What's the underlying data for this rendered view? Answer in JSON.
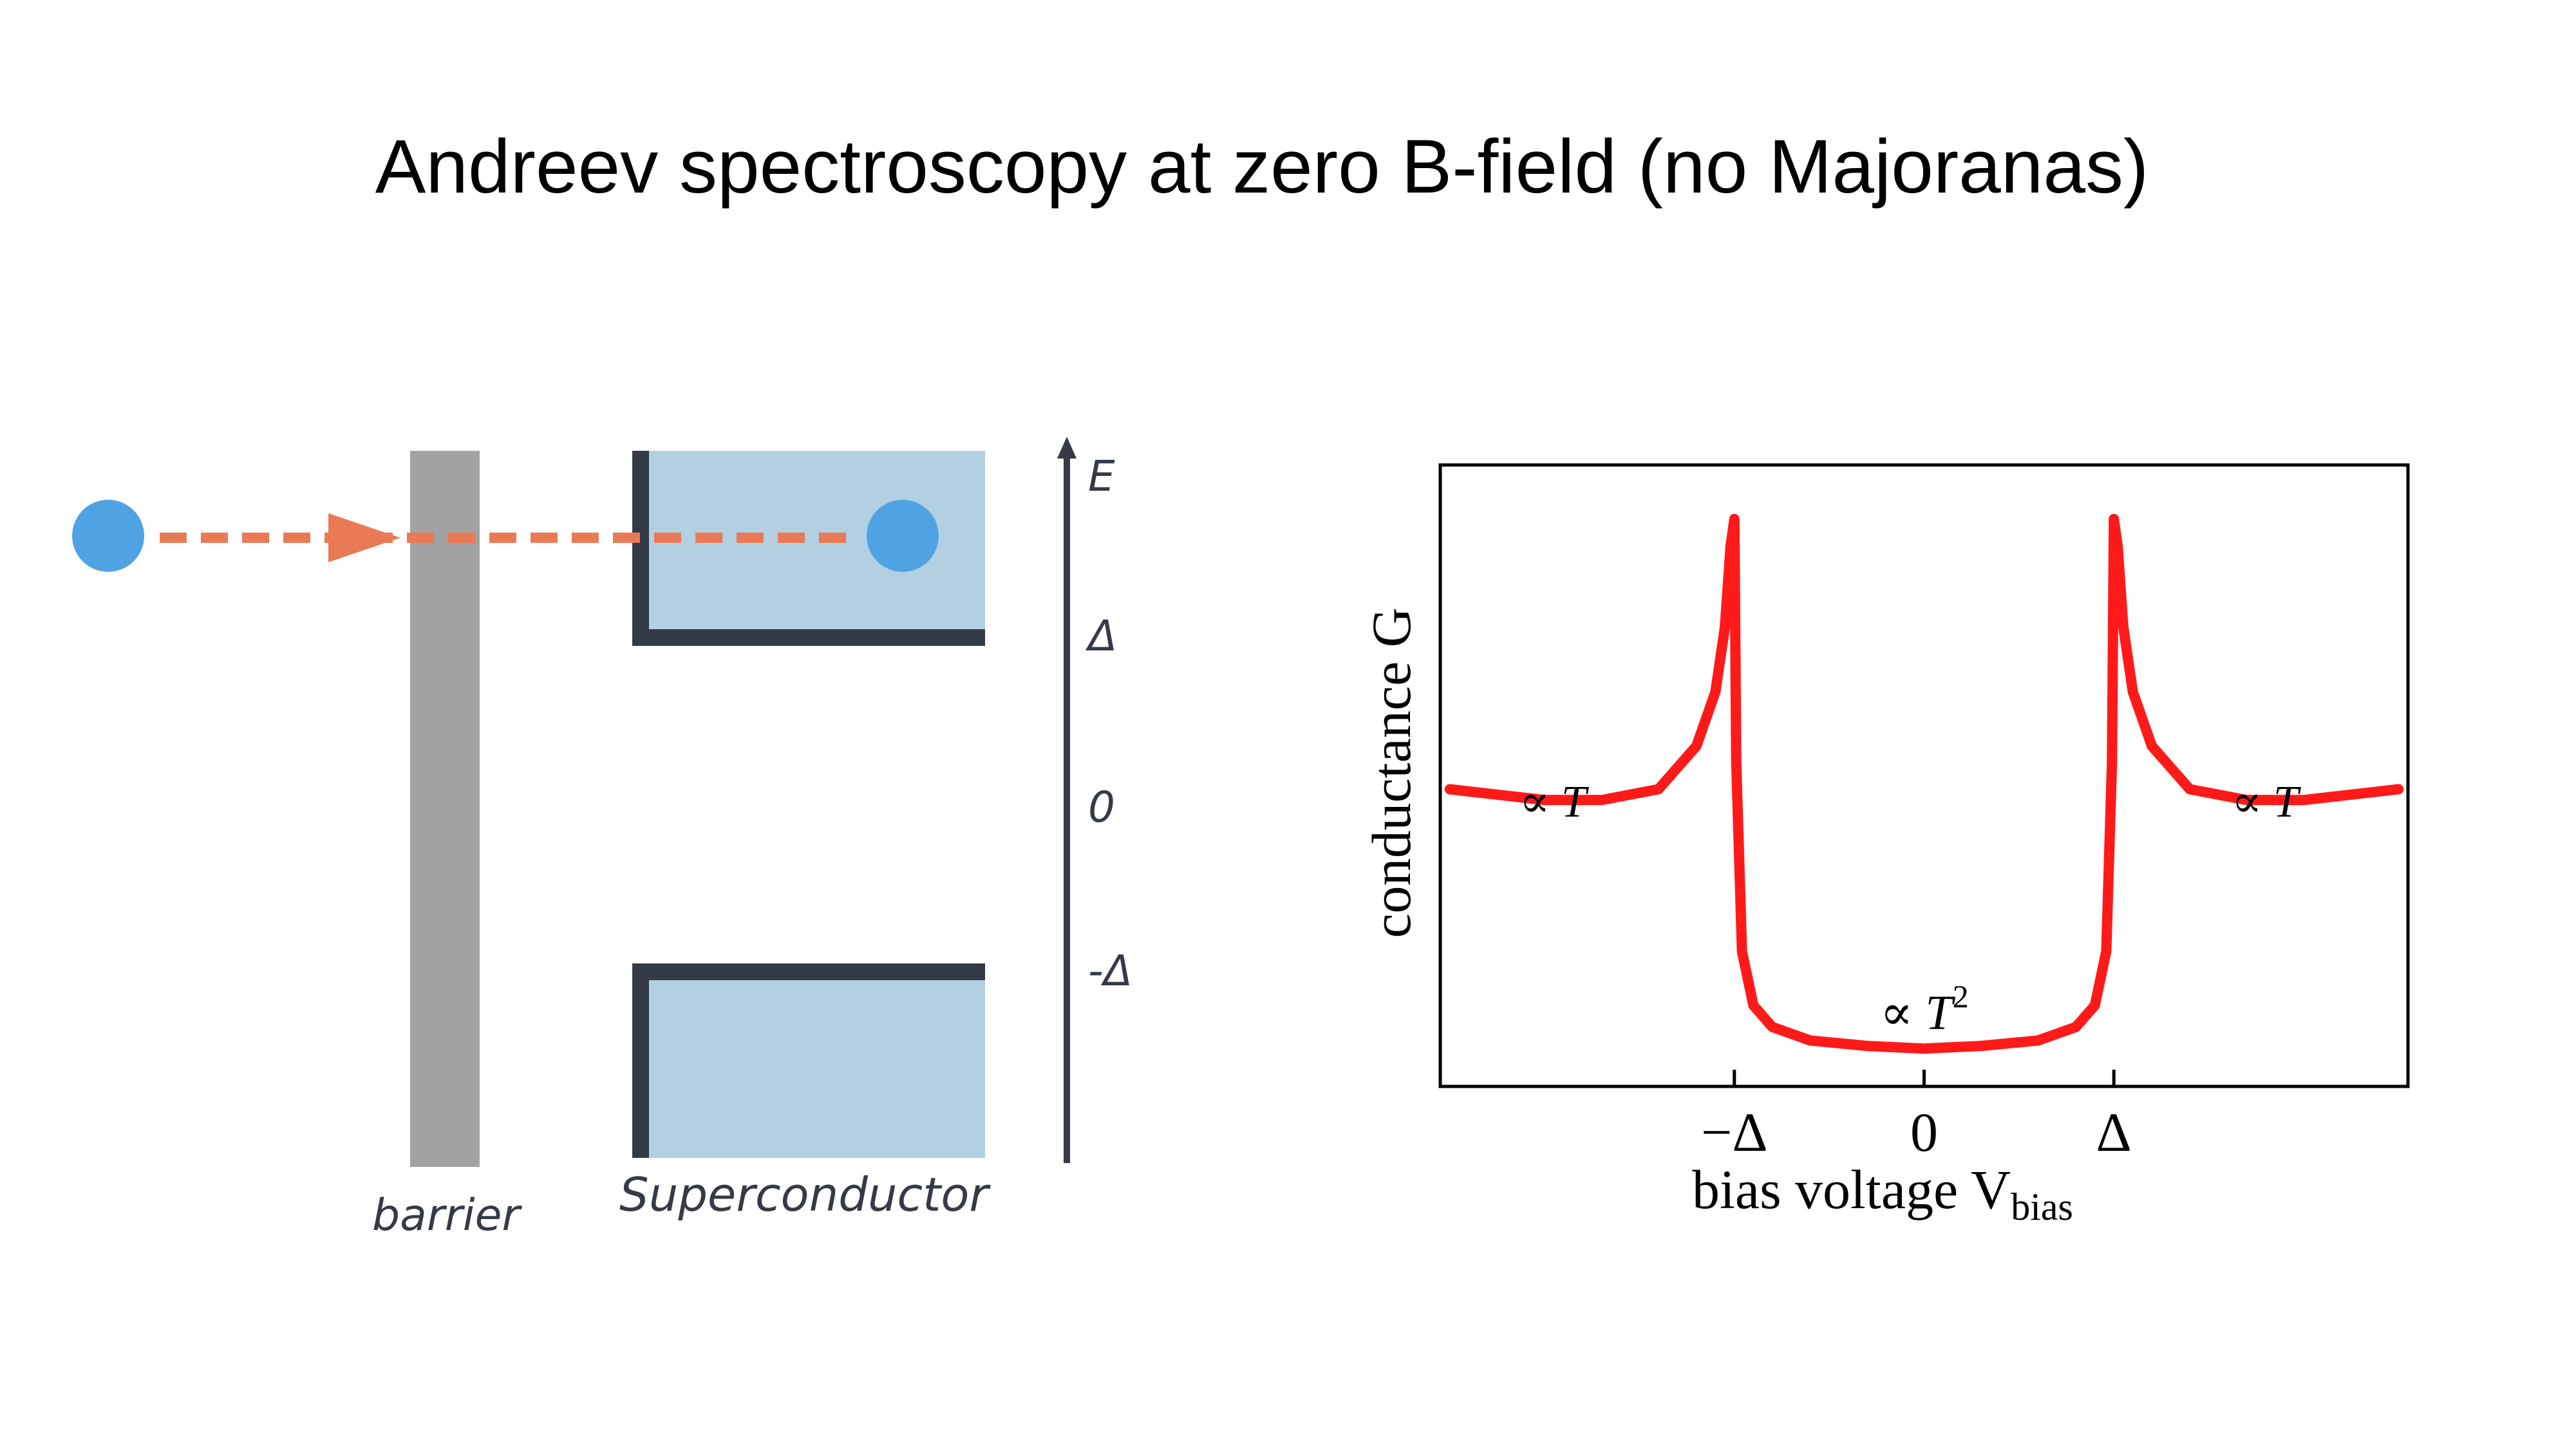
{
  "title": "Andreev spectroscopy at zero B-field (no Majoranas)",
  "diagram": {
    "barrier_label": "barrier",
    "superconductor_label": "Superconductor",
    "energy_axis": {
      "label": "E",
      "ticks": [
        "Δ",
        "0",
        "-Δ"
      ]
    },
    "colors": {
      "electron": "#4fa3e3",
      "trajectory": "#ea7a56",
      "barrier": "#a2a2a2",
      "superconductor_fill": "#b3cfe2",
      "superconductor_edge": "#343a46",
      "axis": "#343a46"
    }
  },
  "chart_data": {
    "type": "line",
    "xlabel": "bias voltage V",
    "xlabel_subscript": "bias",
    "ylabel": "conductance G",
    "x_ticks": [
      "−Δ",
      "0",
      "Δ"
    ],
    "annotations": [
      {
        "text": "∝ T",
        "region": "left, |V| > Δ"
      },
      {
        "text": "∝ T",
        "region": "right, |V| > Δ"
      },
      {
        "text": "∝ T",
        "superscript": "2",
        "region": "center, |V| < Δ"
      }
    ],
    "series": [
      {
        "color": "#ff1a1a",
        "x": [
          -2.5,
          -2.0,
          -1.7,
          -1.4,
          -1.2,
          -1.1,
          -1.05,
          -1.02,
          -1.0,
          -0.99,
          -0.96,
          -0.9,
          -0.8,
          -0.6,
          -0.3,
          0.0,
          0.3,
          0.6,
          0.8,
          0.9,
          0.96,
          0.99,
          1.0,
          1.02,
          1.05,
          1.1,
          1.2,
          1.4,
          1.7,
          2.0,
          2.5
        ],
        "y": [
          0.5,
          0.48,
          0.48,
          0.5,
          0.58,
          0.68,
          0.8,
          0.95,
          1.0,
          0.55,
          0.2,
          0.1,
          0.06,
          0.035,
          0.025,
          0.02,
          0.025,
          0.035,
          0.06,
          0.1,
          0.2,
          0.55,
          1.0,
          0.95,
          0.8,
          0.68,
          0.58,
          0.5,
          0.48,
          0.48,
          0.5
        ]
      }
    ],
    "xlim": [
      -2.55,
      2.55
    ],
    "ylim": [
      -0.05,
      1.1
    ],
    "grid": false
  }
}
